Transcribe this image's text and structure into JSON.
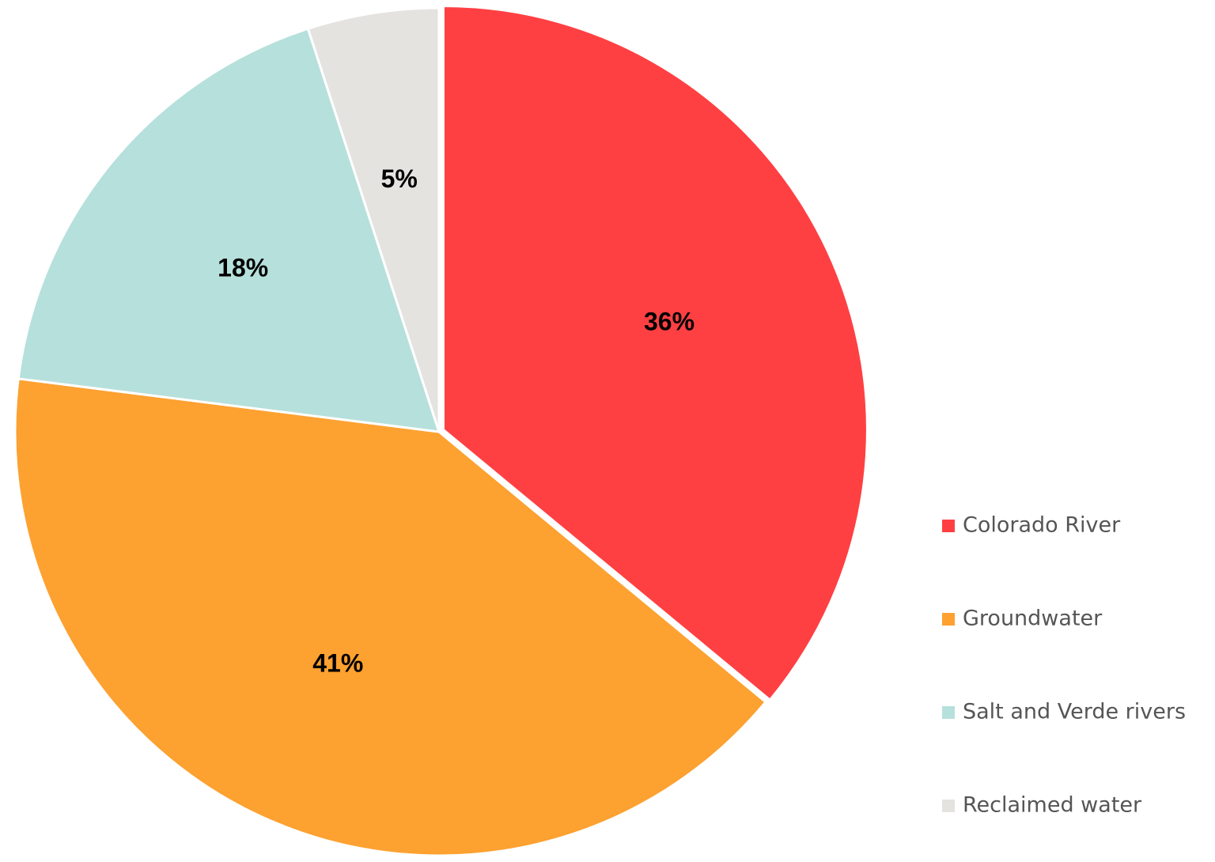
{
  "chart_data": {
    "type": "pie",
    "categories": [
      "Colorado River",
      "Groundwater",
      "Salt and Verde rivers",
      "Reclaimed water"
    ],
    "values": [
      36,
      41,
      18,
      5
    ],
    "value_labels": [
      "36%",
      "41%",
      "18%",
      "5%"
    ],
    "colors": [
      "#ff4043",
      "#fda130",
      "#b6e0dc",
      "#e5e3df"
    ],
    "legend": "right"
  }
}
